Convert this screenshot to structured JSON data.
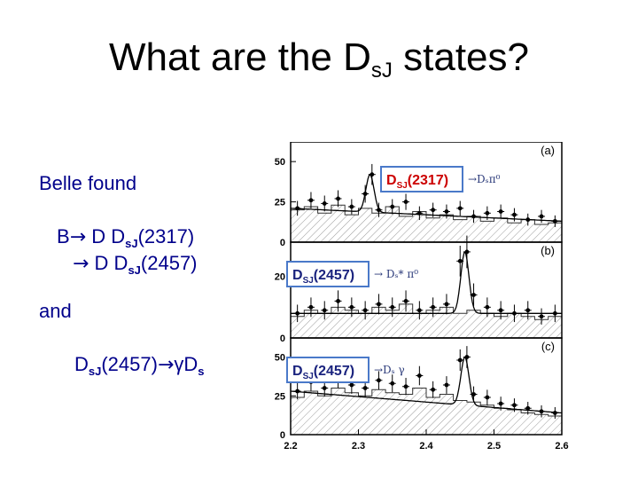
{
  "slide": {
    "title_pre": "What are the D",
    "title_sub": "sJ",
    "title_post": " states?",
    "belle_found": "Belle found",
    "line1": {
      "pre": "B",
      "arrow": "→",
      "mid": " D D",
      "sub": "sJ",
      "post": "(2317)"
    },
    "line2": {
      "arrow": "→",
      "mid": " D D",
      "sub": "sJ",
      "post": "(2457)"
    },
    "and": "and",
    "line3": {
      "pre": "D",
      "sub": "sJ",
      "mid": "(2457)",
      "arrow": "→",
      "gamma": "γ",
      "post": "D",
      "post_sub": "s"
    }
  },
  "colors": {
    "text_blue": "#00008b",
    "label_red": "#cc0000",
    "label_navy": "#1a237e",
    "box_border": "#4a79c9"
  },
  "chart_data": {
    "type": "histogram",
    "x_ticks": [
      "2.2",
      "2.3",
      "2.4",
      "2.5",
      "2.6"
    ],
    "xlim": [
      2.2,
      2.6
    ],
    "panels": [
      {
        "tag": "(a)",
        "label_main": "D",
        "label_sub": "SJ",
        "label_post": "(2317)",
        "decay": "→Dₛπ⁰",
        "ylim": [
          0,
          60
        ],
        "y_ticks": [
          "0",
          "25",
          "50"
        ],
        "signal_peak": 2.317,
        "points": [
          [
            2.21,
            21
          ],
          [
            2.23,
            26
          ],
          [
            2.25,
            24
          ],
          [
            2.27,
            27
          ],
          [
            2.29,
            22
          ],
          [
            2.31,
            30
          ],
          [
            2.32,
            42
          ],
          [
            2.33,
            20
          ],
          [
            2.35,
            22
          ],
          [
            2.37,
            25
          ],
          [
            2.39,
            18
          ],
          [
            2.41,
            20
          ],
          [
            2.43,
            19
          ],
          [
            2.45,
            21
          ],
          [
            2.47,
            16
          ],
          [
            2.49,
            18
          ],
          [
            2.51,
            19
          ],
          [
            2.53,
            17
          ],
          [
            2.55,
            14
          ],
          [
            2.57,
            16
          ],
          [
            2.59,
            13
          ]
        ],
        "background_steps": [
          [
            2.2,
            20
          ],
          [
            2.22,
            22
          ],
          [
            2.24,
            18
          ],
          [
            2.26,
            23
          ],
          [
            2.28,
            17
          ],
          [
            2.3,
            21
          ],
          [
            2.32,
            18
          ],
          [
            2.34,
            22
          ],
          [
            2.36,
            16
          ],
          [
            2.38,
            19
          ],
          [
            2.4,
            15
          ],
          [
            2.42,
            17
          ],
          [
            2.44,
            14
          ],
          [
            2.46,
            16
          ],
          [
            2.48,
            13
          ],
          [
            2.5,
            15
          ],
          [
            2.52,
            12
          ],
          [
            2.54,
            14
          ],
          [
            2.56,
            11
          ],
          [
            2.58,
            12
          ]
        ]
      },
      {
        "tag": "(b)",
        "label_main": "D",
        "label_sub": "SJ",
        "label_post": "(2457)",
        "decay": "→ Dₛ* π⁰",
        "ylim": [
          0,
          30
        ],
        "y_ticks": [
          "0",
          "20"
        ],
        "signal_peak": 2.457,
        "points": [
          [
            2.21,
            8
          ],
          [
            2.23,
            10
          ],
          [
            2.25,
            9
          ],
          [
            2.27,
            12
          ],
          [
            2.29,
            10
          ],
          [
            2.31,
            9
          ],
          [
            2.33,
            11
          ],
          [
            2.35,
            10
          ],
          [
            2.37,
            12
          ],
          [
            2.39,
            9
          ],
          [
            2.41,
            10
          ],
          [
            2.43,
            11
          ],
          [
            2.45,
            25
          ],
          [
            2.46,
            28
          ],
          [
            2.47,
            14
          ],
          [
            2.49,
            10
          ],
          [
            2.51,
            9
          ],
          [
            2.53,
            8
          ],
          [
            2.55,
            9
          ],
          [
            2.57,
            7
          ],
          [
            2.59,
            8
          ]
        ],
        "background_steps": [
          [
            2.2,
            7
          ],
          [
            2.22,
            9
          ],
          [
            2.24,
            8
          ],
          [
            2.26,
            10
          ],
          [
            2.28,
            9
          ],
          [
            2.3,
            8
          ],
          [
            2.32,
            10
          ],
          [
            2.34,
            9
          ],
          [
            2.36,
            11
          ],
          [
            2.38,
            8
          ],
          [
            2.4,
            9
          ],
          [
            2.42,
            10
          ],
          [
            2.44,
            8
          ],
          [
            2.46,
            9
          ],
          [
            2.48,
            8
          ],
          [
            2.5,
            7
          ],
          [
            2.52,
            8
          ],
          [
            2.54,
            7
          ],
          [
            2.56,
            6
          ],
          [
            2.58,
            7
          ]
        ]
      },
      {
        "tag": "(c)",
        "label_main": "D",
        "label_sub": "SJ",
        "label_post": "(2457)",
        "decay": "→Dₛ γ",
        "ylim": [
          0,
          60
        ],
        "y_ticks": [
          "0",
          "25",
          "50"
        ],
        "signal_peak": 2.457,
        "points": [
          [
            2.21,
            28
          ],
          [
            2.23,
            34
          ],
          [
            2.25,
            30
          ],
          [
            2.27,
            36
          ],
          [
            2.29,
            32
          ],
          [
            2.31,
            30
          ],
          [
            2.33,
            35
          ],
          [
            2.35,
            33
          ],
          [
            2.37,
            31
          ],
          [
            2.39,
            38
          ],
          [
            2.41,
            29
          ],
          [
            2.43,
            32
          ],
          [
            2.45,
            48
          ],
          [
            2.46,
            50
          ],
          [
            2.47,
            26
          ],
          [
            2.49,
            24
          ],
          [
            2.51,
            20
          ],
          [
            2.53,
            19
          ],
          [
            2.55,
            17
          ],
          [
            2.57,
            15
          ],
          [
            2.59,
            14
          ]
        ],
        "background_steps": [
          [
            2.2,
            24
          ],
          [
            2.22,
            28
          ],
          [
            2.24,
            25
          ],
          [
            2.26,
            30
          ],
          [
            2.28,
            27
          ],
          [
            2.3,
            25
          ],
          [
            2.32,
            29
          ],
          [
            2.34,
            27
          ],
          [
            2.36,
            26
          ],
          [
            2.38,
            30
          ],
          [
            2.4,
            24
          ],
          [
            2.42,
            26
          ],
          [
            2.44,
            22
          ],
          [
            2.46,
            21
          ],
          [
            2.48,
            19
          ],
          [
            2.5,
            17
          ],
          [
            2.52,
            16
          ],
          [
            2.54,
            14
          ],
          [
            2.56,
            13
          ],
          [
            2.58,
            12
          ]
        ]
      }
    ]
  }
}
